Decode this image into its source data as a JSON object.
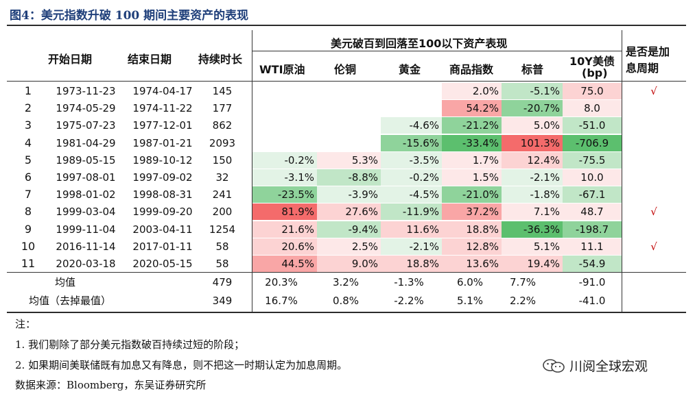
{
  "title": "图4：美元指数升破 100 期间主要资产的表现",
  "header": {
    "start": "开始日期",
    "end": "结束日期",
    "duration": "持续时长",
    "group": "美元破百到回落至100以下资产表现",
    "wti": "WTI原油",
    "copper": "伦铜",
    "gold": "黄金",
    "commodity": "商品指数",
    "sp": "标普",
    "bond": "10Y美债",
    "bond_unit": "(bp)",
    "hike_line1": "是否是加",
    "hike_line2": "息周期"
  },
  "rows": [
    {
      "no": "1",
      "start": "1973-11-23",
      "end": "1974-04-17",
      "dur": "145",
      "wti": "",
      "copper": "",
      "gold": "",
      "commodity": "2.0%",
      "sp": "-5.1%",
      "bond": "75.0",
      "hike": "√"
    },
    {
      "no": "2",
      "start": "1974-05-29",
      "end": "1974-11-22",
      "dur": "177",
      "wti": "",
      "copper": "",
      "gold": "",
      "commodity": "54.2%",
      "sp": "-20.7%",
      "bond": "8.0",
      "hike": ""
    },
    {
      "no": "3",
      "start": "1975-07-23",
      "end": "1977-12-01",
      "dur": "862",
      "wti": "",
      "copper": "",
      "gold": "-4.6%",
      "commodity": "-21.2%",
      "sp": "5.0%",
      "bond": "-51.0",
      "hike": ""
    },
    {
      "no": "4",
      "start": "1981-04-29",
      "end": "1987-01-21",
      "dur": "2093",
      "wti": "",
      "copper": "",
      "gold": "-15.6%",
      "commodity": "-33.4%",
      "sp": "101.3%",
      "bond": "-706.9",
      "hike": ""
    },
    {
      "no": "5",
      "start": "1989-05-15",
      "end": "1989-10-12",
      "dur": "150",
      "wti": "-0.2%",
      "copper": "5.3%",
      "gold": "-3.5%",
      "commodity": "1.7%",
      "sp": "12.4%",
      "bond": "-75.5",
      "hike": ""
    },
    {
      "no": "6",
      "start": "1997-08-01",
      "end": "1997-09-02",
      "dur": "32",
      "wti": "-3.1%",
      "copper": "-8.8%",
      "gold": "-0.2%",
      "commodity": "1.5%",
      "sp": "-2.1%",
      "bond": "10.0",
      "hike": ""
    },
    {
      "no": "7",
      "start": "1998-01-02",
      "end": "1998-08-31",
      "dur": "241",
      "wti": "-23.5%",
      "copper": "-3.9%",
      "gold": "-4.5%",
      "commodity": "-21.0%",
      "sp": "-1.8%",
      "bond": "-67.1",
      "hike": ""
    },
    {
      "no": "8",
      "start": "1999-03-04",
      "end": "1999-09-20",
      "dur": "200",
      "wti": "81.9%",
      "copper": "27.6%",
      "gold": "-11.9%",
      "commodity": "37.2%",
      "sp": "7.1%",
      "bond": "48.7",
      "hike": "√"
    },
    {
      "no": "9",
      "start": "1999-11-04",
      "end": "2003-04-11",
      "dur": "1254",
      "wti": "21.6%",
      "copper": "-9.4%",
      "gold": "11.6%",
      "commodity": "18.8%",
      "sp": "-36.3%",
      "bond": "-198.7",
      "hike": ""
    },
    {
      "no": "10",
      "start": "2016-11-14",
      "end": "2017-01-11",
      "dur": "58",
      "wti": "20.6%",
      "copper": "2.5%",
      "gold": "-2.1%",
      "commodity": "12.8%",
      "sp": "5.1%",
      "bond": "11.1",
      "hike": "√"
    },
    {
      "no": "11",
      "start": "2020-03-18",
      "end": "2020-05-15",
      "dur": "58",
      "wti": "44.5%",
      "copper": "9.0%",
      "gold": "18.8%",
      "commodity": "13.6%",
      "sp": "19.4%",
      "bond": "-54.9",
      "hike": ""
    }
  ],
  "summary": [
    {
      "label": "均值",
      "dur": "479",
      "wti": "20.3%",
      "copper": "3.2%",
      "gold": "-1.3%",
      "commodity": "6.0%",
      "sp": "7.7%",
      "bond": "-91.0"
    },
    {
      "label": "均值（去掉最值）",
      "dur": "349",
      "wti": "16.7%",
      "copper": "0.8%",
      "gold": "-2.2%",
      "commodity": "5.1%",
      "sp": "2.2%",
      "bond": "-41.0"
    }
  ],
  "colors": {
    "red_strong": "#f46b6b",
    "red_mid": "#f9a6a6",
    "red_light": "#fcd3d3",
    "red_faint": "#fde8e8",
    "green_strong": "#5cbf6e",
    "green_mid": "#8fd39b",
    "green_light": "#c1e6c7",
    "green_faint": "#e3f3e6"
  },
  "notes": {
    "label": "注：",
    "note1": "1. 我们剔除了部分美元指数破百持续过短的阶段；",
    "note2": "2. 如果期间美联储既有加息又有降息，则不把这一时期认定为加息周期。",
    "source": "数据来源：Bloomberg，东吴证券研究所"
  },
  "watermark": "川阅全球宏观"
}
